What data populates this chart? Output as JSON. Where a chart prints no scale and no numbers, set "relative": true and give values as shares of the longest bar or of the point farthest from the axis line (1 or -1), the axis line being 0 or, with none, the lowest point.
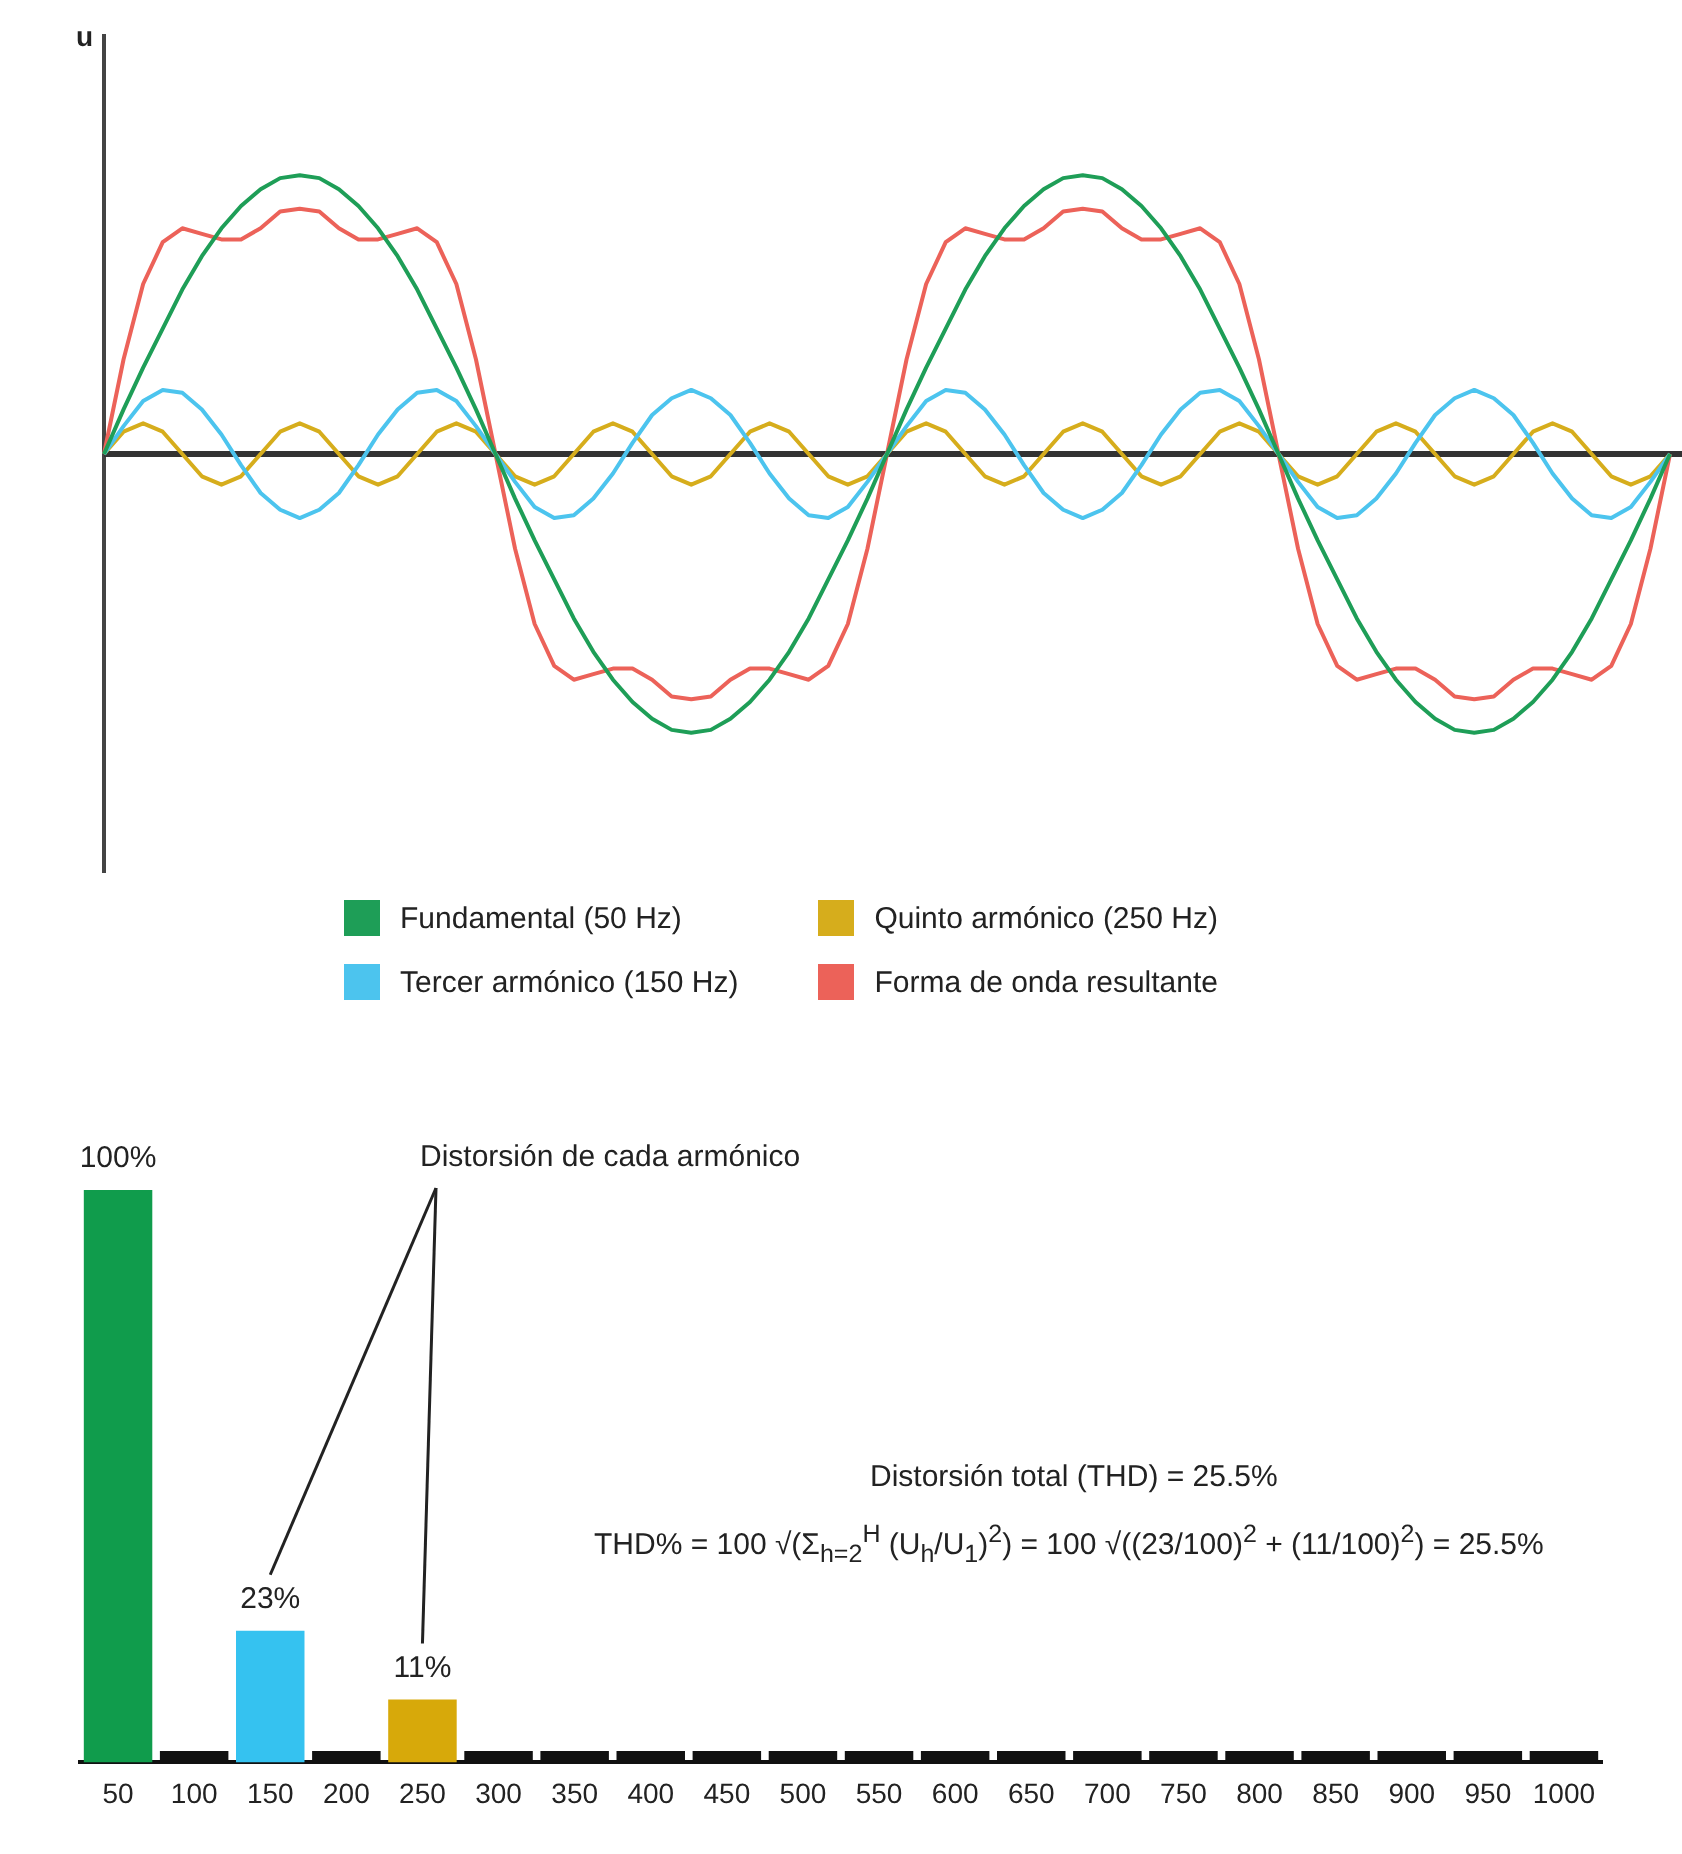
{
  "chart_data": [
    {
      "type": "line",
      "ylabel": "u",
      "relative": true,
      "legend": "bottom",
      "marker": "none",
      "tick_labels": false,
      "categories": [
        null,
        null,
        null,
        null,
        null,
        null,
        null,
        null,
        null,
        null,
        null,
        null,
        null,
        null,
        null,
        null,
        null,
        null,
        null,
        null,
        null,
        null,
        null,
        null,
        null,
        null,
        null,
        null,
        null,
        null,
        null,
        null,
        null,
        null,
        null,
        null,
        null,
        null,
        null,
        null,
        null,
        null,
        null,
        null,
        null,
        null,
        null,
        null,
        null,
        null,
        null,
        null,
        null,
        null,
        null,
        null,
        null,
        null,
        null,
        null,
        null,
        null,
        null,
        null,
        null,
        null,
        null,
        null,
        null,
        null,
        null,
        null,
        null,
        null,
        null,
        null,
        null,
        null,
        null,
        null,
        null
      ],
      "series": [
        {
          "name": "Fundamental (50 Hz)",
          "color": "#1e9e57",
          "values": [
            0,
            0.16,
            0.31,
            0.45,
            0.59,
            0.71,
            0.81,
            0.89,
            0.95,
            0.99,
            1,
            0.99,
            0.95,
            0.89,
            0.81,
            0.71,
            0.59,
            0.45,
            0.31,
            0.16,
            0,
            -0.16,
            -0.31,
            -0.45,
            -0.59,
            -0.71,
            -0.81,
            -0.89,
            -0.95,
            -0.99,
            -1,
            -0.99,
            -0.95,
            -0.89,
            -0.81,
            -0.71,
            -0.59,
            -0.45,
            -0.31,
            -0.16,
            0,
            0.16,
            0.31,
            0.45,
            0.59,
            0.71,
            0.81,
            0.89,
            0.95,
            0.99,
            1,
            0.99,
            0.95,
            0.89,
            0.81,
            0.71,
            0.59,
            0.45,
            0.31,
            0.16,
            0,
            -0.16,
            -0.31,
            -0.45,
            -0.59,
            -0.71,
            -0.81,
            -0.89,
            -0.95,
            -0.99,
            -1,
            -0.99,
            -0.95,
            -0.89,
            -0.81,
            -0.71,
            -0.59,
            -0.45,
            -0.31,
            -0.16,
            0
          ]
        },
        {
          "name": "Tercer armónico (150 Hz)",
          "color": "#4cc4ee",
          "values": [
            0,
            0.1,
            0.19,
            0.23,
            0.22,
            0.16,
            0.07,
            -0.04,
            -0.14,
            -0.2,
            -0.23,
            -0.2,
            -0.14,
            -0.04,
            0.07,
            0.16,
            0.22,
            0.23,
            0.19,
            0.1,
            0,
            -0.1,
            -0.19,
            -0.23,
            -0.22,
            -0.16,
            -0.07,
            0.04,
            0.14,
            0.2,
            0.23,
            0.2,
            0.14,
            0.04,
            -0.07,
            -0.16,
            -0.22,
            -0.23,
            -0.19,
            -0.1,
            0,
            0.1,
            0.19,
            0.23,
            0.22,
            0.16,
            0.07,
            -0.04,
            -0.14,
            -0.2,
            -0.23,
            -0.2,
            -0.14,
            -0.04,
            0.07,
            0.16,
            0.22,
            0.23,
            0.19,
            0.1,
            0,
            -0.1,
            -0.19,
            -0.23,
            -0.22,
            -0.16,
            -0.07,
            0.04,
            0.14,
            0.2,
            0.23,
            0.2,
            0.14,
            0.04,
            -0.07,
            -0.16,
            -0.22,
            -0.23,
            -0.19,
            -0.1,
            0
          ]
        },
        {
          "name": "Quinto armónico (250 Hz)",
          "color": "#d6ad1c",
          "values": [
            0,
            0.08,
            0.11,
            0.08,
            0,
            -0.08,
            -0.11,
            -0.08,
            0,
            0.08,
            0.11,
            0.08,
            0,
            -0.08,
            -0.11,
            -0.08,
            0,
            0.08,
            0.11,
            0.08,
            0,
            -0.08,
            -0.11,
            -0.08,
            0,
            0.08,
            0.11,
            0.08,
            0,
            -0.08,
            -0.11,
            -0.08,
            0,
            0.08,
            0.11,
            0.08,
            0,
            -0.08,
            -0.11,
            -0.08,
            0,
            0.08,
            0.11,
            0.08,
            0,
            -0.08,
            -0.11,
            -0.08,
            0,
            0.08,
            0.11,
            0.08,
            0,
            -0.08,
            -0.11,
            -0.08,
            0,
            0.08,
            0.11,
            0.08,
            0,
            -0.08,
            -0.11,
            -0.08,
            0,
            0.08,
            0.11,
            0.08,
            0,
            -0.08,
            -0.11,
            -0.08,
            0,
            0.08,
            0.11,
            0.08,
            0,
            -0.08,
            -0.11,
            -0.08,
            0
          ]
        },
        {
          "name": "Forma de onda resultante",
          "color": "#ec6259",
          "values": [
            0,
            0.34,
            0.61,
            0.76,
            0.81,
            0.79,
            0.77,
            0.77,
            0.81,
            0.87,
            0.88,
            0.87,
            0.81,
            0.77,
            0.77,
            0.79,
            0.81,
            0.76,
            0.61,
            0.34,
            0,
            -0.34,
            -0.61,
            -0.76,
            -0.81,
            -0.79,
            -0.77,
            -0.77,
            -0.81,
            -0.87,
            -0.88,
            -0.87,
            -0.81,
            -0.77,
            -0.77,
            -0.79,
            -0.81,
            -0.76,
            -0.61,
            -0.34,
            0,
            0.34,
            0.61,
            0.76,
            0.81,
            0.79,
            0.77,
            0.77,
            0.81,
            0.87,
            0.88,
            0.87,
            0.81,
            0.77,
            0.77,
            0.79,
            0.81,
            0.76,
            0.61,
            0.34,
            0,
            -0.34,
            -0.61,
            -0.76,
            -0.81,
            -0.79,
            -0.77,
            -0.77,
            -0.81,
            -0.87,
            -0.88,
            -0.87,
            -0.81,
            -0.77,
            -0.77,
            -0.79,
            -0.81,
            -0.76,
            -0.61,
            -0.34,
            0
          ]
        }
      ]
    },
    {
      "type": "bar",
      "tick_labels": "x",
      "categories": [
        "50",
        "100",
        "150",
        "200",
        "250",
        "300",
        "350",
        "400",
        "450",
        "500",
        "550",
        "600",
        "650",
        "700",
        "750",
        "800",
        "850",
        "900",
        "950",
        "1000"
      ],
      "values": [
        100,
        2,
        23,
        2,
        11,
        2,
        2,
        2,
        2,
        2,
        2,
        2,
        2,
        2,
        2,
        2,
        2,
        2,
        2,
        2
      ],
      "colors": [
        "#109c4c",
        "#111111",
        "#35c2f0",
        "#111111",
        "#d7a90a",
        "#111111",
        "#111111",
        "#111111",
        "#111111",
        "#111111",
        "#111111",
        "#111111",
        "#111111",
        "#111111",
        "#111111",
        "#111111",
        "#111111",
        "#111111",
        "#111111",
        "#111111"
      ],
      "value_labels": [
        "100%",
        null,
        "23%",
        null,
        "11%",
        null,
        null,
        null,
        null,
        null,
        null,
        null,
        null,
        null,
        null,
        null,
        null,
        null,
        null,
        null
      ],
      "annotations": [
        "Distorsión de cada armónico",
        "Distorsión total (THD) = 25.5%",
        "THD% = 100 √(Σ$_{h=2}$$^{H}$ (U$_{h}$/U$_{1}$)$^{2}$) = 100 √((23/100)$^{2}$ + (11/100)$^{2}$) = 25.5%"
      ]
    }
  ]
}
